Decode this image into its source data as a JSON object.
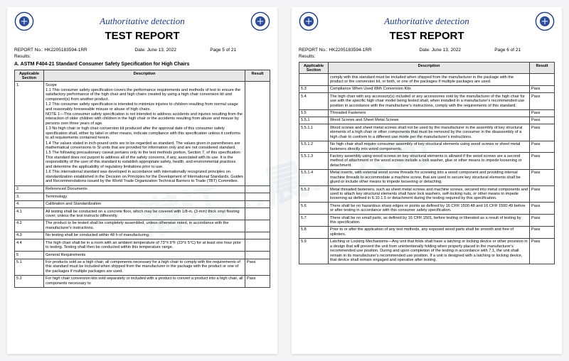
{
  "watermark_text": "潜江…晨…公司",
  "header_title": "Authoritative detection",
  "report_title": "TEST REPORT",
  "report_no_label": "REPORT No.:",
  "report_no": "HK2205183594-1RR",
  "date_label": "Date:",
  "date_value": "June 13, 2022",
  "results_label": "Results:",
  "spec_title": "A. ASTM F404-21 Standard Consumer Safety Specification for High Chairs",
  "columns": {
    "section": "Applicable Section",
    "description": "Description",
    "result": "Result"
  },
  "page5": {
    "page_label": "Page 5 of 21",
    "rows": [
      {
        "sec": "1.",
        "desc_parts": [
          "Scope",
          "1.1 This consumer safety specification covers the performance requirements and methods of test to ensure the satisfactory performance of the high chair and high chairs created by using a high chair conversion kit and component(s) from another product.",
          "1.2 This consumer safety specification is intended to minimize injuries to children resulting from normal usage and reasonably foreseeable misuse or abuse of high chairs.",
          "NOTE 1—This consumer safety specification is not intended to address accidents and injuries resulting from the interaction of older children with children in the high chair or the accidents resulting from abuse and misuse by persons over three years of age.",
          "1.3 No high chair or high chair conversion kit produced after the approval date of this consumer safety specification shall, either by label or other means, indicate compliance with this specification unless it conforms to all requirements contained herein.",
          "1.4 The values stated in inch-pound units are to be regarded as standard. The values given in parentheses are mathematical conversions to SI units that are provided for information only and are not considered standard.",
          "1.5 The following precautionary caveat pertains only to the test methods portion, Section 7, of this specification: This standard does not purport to address all of the safety concerns, if any, associated with its use. It is the responsibility of the user of this standard to establish appropriate safety, health, and environmental practices and determine the applicability of regulatory limitations prior to use.",
          "1.6 This international standard was developed in accordance with internationally recognized principles on standardization established in the Decision on Principles for the Development of International Standards, Guides and Recommendations issued by the World Trade Organization Technical Barriers to Trade (TBT) Committee."
        ],
        "res": ""
      },
      {
        "sec": "2.",
        "desc": "Referenced Documents",
        "res": ""
      },
      {
        "sec": "3.",
        "desc": "Terminology",
        "res": ""
      },
      {
        "sec": "4.",
        "desc": "Calibration and Standardization",
        "res": ""
      },
      {
        "sec": "4.1",
        "desc": "All testing shall be conducted on a concrete floor, which may be covered with 1/8-in. (3-mm) thick vinyl flooring cover, unless the test instructs differently.",
        "res": ""
      },
      {
        "sec": "4.2",
        "desc": "The product to be tested shall be completely assembled, unless otherwise noted, in accordance with the manufacturer's instructions.",
        "res": ""
      },
      {
        "sec": "4.3",
        "desc": "No testing shall be conducted within 48 h of manufacturing.",
        "res": ""
      },
      {
        "sec": "4.4",
        "desc": "The high chair shall be in a room with an ambient temperature of 73°± 9°F (23°± 5°C) for at least one hour prior to testing. Testing shall then be conducted within this temperature range.",
        "res": ""
      },
      {
        "sec": "5",
        "desc": "General Requirements",
        "res": ""
      },
      {
        "sec": "5.1",
        "desc": "For products sold as a high chair, all components necessary for a high chair to comply with the requirements of this standard must be included when shipped from the manufacturer in the package with the product or one of the packages if multiple packages are used.",
        "res": "Pass"
      },
      {
        "sec": "5.2",
        "desc": "For high chair conversion kits sold separately or included with a product to convert a product into a high chair, all components necessary to",
        "res": "Pass"
      }
    ]
  },
  "page6": {
    "page_label": "Page 6 of 21",
    "rows": [
      {
        "sec": "",
        "desc": "comply with this standard must be included when shipped from the manufacturer in the package with the product or the conversion kit, or both, or one of the packages if multiple packages are used.",
        "res": ""
      },
      {
        "sec": "5.3",
        "desc": "Compliance When Used With Conversion Kits",
        "res": "Pass"
      },
      {
        "sec": "5.4",
        "desc": "The high chair with any accessory(s) included or any accessories sold by the manufacturer of the high chair for use with the specific high chair model being tested shall, when installed in a manufacturer's recommended use position in accordance with the manufacturer's instructions, comply with the requirements of this standard.",
        "res": "Pass"
      },
      {
        "sec": "5.5",
        "desc": "Threaded Fasteners",
        "res": "Pass"
      },
      {
        "sec": "5.5.1",
        "desc": "Wood Screws and Sheet Metal Screws",
        "res": "Pass"
      },
      {
        "sec": "5.5.1.1",
        "desc": "Wood screws and sheet metal screws shall not be used by the manufacturer in the assembly of key structural elements of a high chair or other components that must be removed by the consumer in the disassembly of a high chair to conform to a different use mode per the manufacturer's instructions.",
        "res": "Pass"
      },
      {
        "sec": "5.5.1.2",
        "desc": "No high chair shall require consumer assembly of key structural elements using wood screws or sheet metal fasteners directly into wood components.",
        "res": "Pass"
      },
      {
        "sec": "5.5.1.3",
        "desc": "Factory assembly using wood screws on key structural elements is allowed if the wood screws are a second method of attachment or the wood screws include a lock washer, glue or other means to impede loosening or detachment.",
        "res": "Pass"
      },
      {
        "sec": "5.5.1.4",
        "desc": "Metal inserts, with external wood screw threads for screwing into a wood component and providing internal machine threads to accommodate a machine screw, that are used to secure key structural elements shall be glued or include other means to impede loosening or detaching.",
        "res": "Pass"
      },
      {
        "sec": "5.5.2",
        "desc": "Metal threaded fasteners, such as sheet metal screws and machine screws, secured into metal components and used to attach key structural elements shall have lock washers, self-locking nuts, or other means to impede loosening as defined in 6.10.1.5 or detachment during the testing required by this specification.",
        "res": "Pass"
      },
      {
        "sec": "5.6",
        "desc": "There shall be no hazardous sharp edges or points as defined by 16 CFR 1500.48 and 16 CFR 1500.49 before or after testing in accordance with this consumer safety specification.",
        "res": "Pass"
      },
      {
        "sec": "5.7",
        "desc": "There shall be no small parts, as defined by 16 CFR 1501, before testing or liberated as a result of testing by this specification.",
        "res": "Pass"
      },
      {
        "sec": "5.8",
        "desc": "Prior to or after the application of any test methods, any exposed wood parts shall be smooth and free of splinters.",
        "res": "Pass"
      },
      {
        "sec": "5.9",
        "desc": "Latching or Locking Mechanisms—Any unit that folds shall have a latching or locking device or other provision in a design that will prevent the unit from unintentionally folding when properly placed in the manufacturer's recommended use position. During and upon completion of the testing in accordance with 7.1, the unit shall remain in its manufacturer's recommended use position. If a unit is designed with a latching or locking device, that device shall remain engaged and operative after testing.",
        "res": "Pass"
      }
    ]
  },
  "logo_colors": {
    "ring": "#1a3a8a",
    "inner": "#2a4a9a"
  }
}
